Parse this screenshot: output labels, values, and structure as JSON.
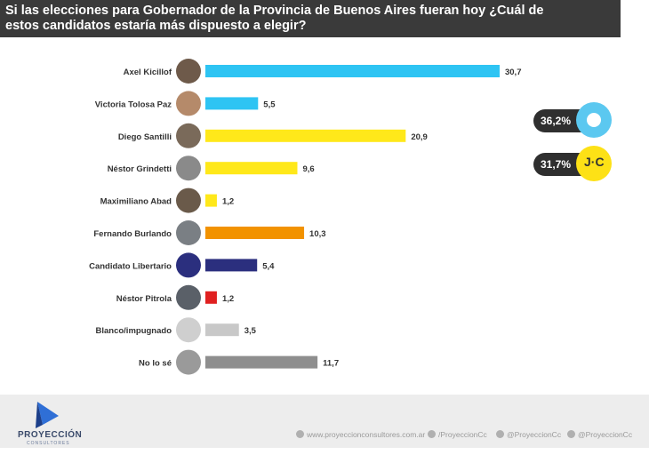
{
  "header": {
    "title_line1": "Si las elecciones para Gobernador de la Provincia de Buenos Aires fueran hoy ¿Cuál de",
    "title_line2": "estos candidatos estaría más dispuesto a elegir?"
  },
  "chart_data": {
    "type": "bar",
    "orientation": "horizontal",
    "title": "Si las elecciones para Gobernador de la Provincia de Buenos Aires fueran hoy ¿Cuál de estos candidatos estaría más dispuesto a elegir?",
    "categories": [
      "Axel Kicillof",
      "Victoria Tolosa Paz",
      "Diego Santilli",
      "Néstor Grindetti",
      "Maximiliano Abad",
      "Fernando Burlando",
      "Candidato Libertario",
      "Néstor Pitrola",
      "Blanco/impugnado",
      "No lo sé"
    ],
    "values": [
      30.7,
      5.5,
      20.9,
      9.6,
      1.2,
      10.3,
      5.4,
      1.2,
      3.5,
      11.7
    ],
    "value_labels": [
      "30,7",
      "5,5",
      "20,9",
      "9,6",
      "1,2",
      "10,3",
      "5,4",
      "1,2",
      "3,5",
      "11,7"
    ],
    "bar_colors": [
      "#2ec4f3",
      "#2ec4f3",
      "#ffe81a",
      "#ffe81a",
      "#ffe81a",
      "#f29200",
      "#2b2f7e",
      "#e02020",
      "#c8c8c8",
      "#8e8e8e"
    ],
    "avatar_colors": [
      "#6e5a4a",
      "#b58a6a",
      "#7a6a5a",
      "#8a8a8a",
      "#6a5a4a",
      "#7a7f84",
      "#2b2f7e",
      "#5a6068",
      "#cfcfcf",
      "#9a9a9a"
    ],
    "xlim": [
      0,
      32
    ]
  },
  "totals": [
    {
      "value": "36,2%",
      "color": "#5bc8f0",
      "icon": "sun-party-logo"
    },
    {
      "value": "31,7%",
      "color": "#fde116",
      "icon": "jxc-party-logo",
      "logo_text": "J·C"
    }
  ],
  "footer": {
    "brand": "PROYECCIÓN",
    "brand_sub": "CONSULTORES",
    "website": "www.proyeccionconsultores.com.ar",
    "facebook": "/ProyeccionCc",
    "twitter": "@ProyeccionCc",
    "instagram": "@ProyeccionCc"
  }
}
